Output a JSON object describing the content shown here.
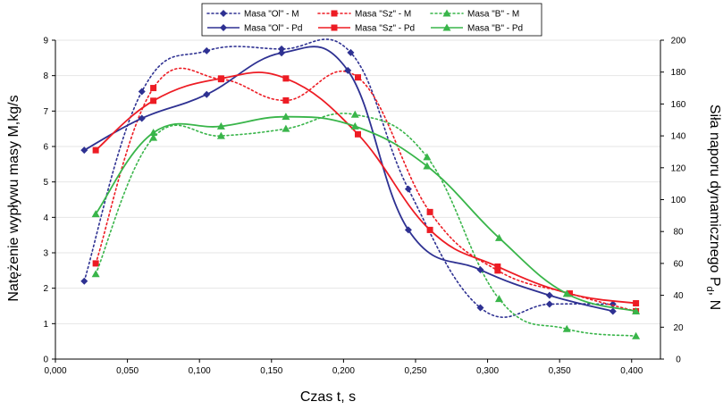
{
  "chart_data": {
    "type": "line",
    "xlabel": "Czas t, s",
    "ylabel_left": "Natężenie wypływu masy M,kg/s",
    "ylabel_right": "Siła naporu dynamicznego P",
    "ylabel_right_sub": "d",
    "ylabel_right_unit": ", N",
    "xlim": [
      0.0,
      0.42
    ],
    "ylim_left": [
      0,
      9
    ],
    "ylim_right": [
      0,
      200
    ],
    "x_ticks": [
      "0,000",
      "0,050",
      "0,100",
      "0,150",
      "0,200",
      "0,250",
      "0,300",
      "0,350",
      "0,400"
    ],
    "y_left_ticks": [
      "0",
      "1",
      "2",
      "3",
      "4",
      "5",
      "6",
      "7",
      "8",
      "9"
    ],
    "y_right_ticks": [
      "0",
      "20",
      "40",
      "60",
      "80",
      "100",
      "120",
      "140",
      "160",
      "180",
      "200"
    ],
    "legend_position": "top-center",
    "series": [
      {
        "name": "Masa \"Ol\" - M",
        "axis": "left",
        "color": "#2e3192",
        "style": "dotted",
        "marker": "diamond",
        "x": [
          0.02,
          0.06,
          0.105,
          0.157,
          0.205,
          0.245,
          0.295,
          0.343,
          0.387
        ],
        "y": [
          2.2,
          7.55,
          8.7,
          8.75,
          8.65,
          4.8,
          1.45,
          1.55,
          1.55
        ]
      },
      {
        "name": "Masa \"Sz\" - M",
        "axis": "left",
        "color": "#ed1c24",
        "style": "dotted",
        "marker": "square",
        "x": [
          0.028,
          0.068,
          0.115,
          0.16,
          0.21,
          0.26,
          0.307,
          0.357,
          0.403
        ],
        "y": [
          2.7,
          7.65,
          7.9,
          7.3,
          7.95,
          4.15,
          2.5,
          1.85,
          1.35
        ]
      },
      {
        "name": "Masa \"B\" - M",
        "axis": "left",
        "color": "#39b54a",
        "style": "dotted",
        "marker": "triangle",
        "x": [
          0.028,
          0.068,
          0.115,
          0.16,
          0.208,
          0.258,
          0.308,
          0.355,
          0.403
        ],
        "y": [
          2.4,
          6.25,
          6.3,
          6.5,
          6.9,
          5.7,
          1.7,
          0.85,
          0.65
        ]
      },
      {
        "name": "Masa \"Ol\" - Pd",
        "axis": "right",
        "color": "#2e3192",
        "style": "solid",
        "marker": "diamond",
        "x": [
          0.02,
          0.06,
          0.105,
          0.157,
          0.203,
          0.245,
          0.295,
          0.343,
          0.387
        ],
        "y": [
          131,
          151,
          166,
          192,
          181,
          81,
          56,
          40,
          30
        ]
      },
      {
        "name": "Masa \"Sz\" - Pd",
        "axis": "right",
        "color": "#ed1c24",
        "style": "solid",
        "marker": "square",
        "x": [
          0.028,
          0.068,
          0.115,
          0.16,
          0.21,
          0.26,
          0.307,
          0.357,
          0.403
        ],
        "y": [
          131,
          162,
          176,
          176,
          141,
          81,
          58,
          41,
          35
        ]
      },
      {
        "name": "Masa \"B\" - Pd",
        "axis": "right",
        "color": "#39b54a",
        "style": "solid",
        "marker": "triangle",
        "x": [
          0.028,
          0.068,
          0.115,
          0.16,
          0.208,
          0.258,
          0.308,
          0.355,
          0.403
        ],
        "y": [
          91,
          142,
          146,
          152,
          146,
          121,
          76,
          41,
          30
        ]
      }
    ]
  }
}
